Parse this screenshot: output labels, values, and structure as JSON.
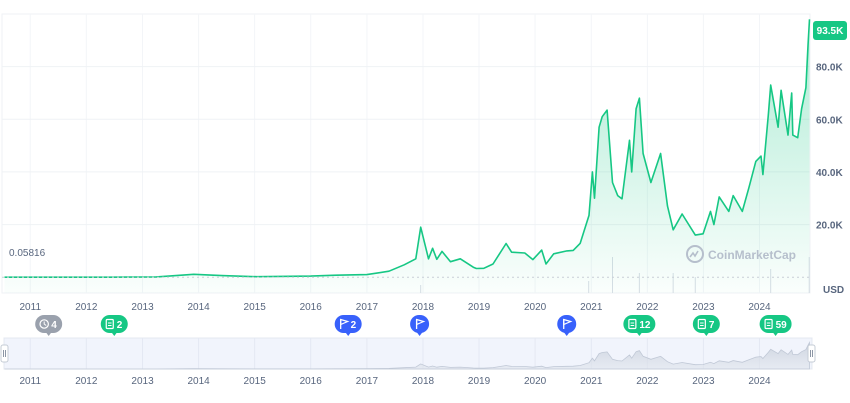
{
  "chart_data": {
    "type": "area",
    "title": "",
    "currency_label": "USD",
    "current_price_label": "93.5K",
    "start_price_label": "0.05816",
    "watermark": "CoinMarketCap",
    "x_axis": {
      "type": "date",
      "range": [
        "2010-07-01",
        "2024-11-25"
      ]
    },
    "y_axis": {
      "range": [
        -6000,
        100000
      ],
      "ticks": [
        20000,
        40000,
        60000,
        80000
      ],
      "tick_labels": [
        "20.0K",
        "40.0K",
        "60.0K",
        "80.0K"
      ]
    },
    "year_labels": [
      "2011",
      "2012",
      "2013",
      "2014",
      "2015",
      "2016",
      "2017",
      "2018",
      "2019",
      "2020",
      "2021",
      "2022",
      "2023",
      "2024"
    ],
    "series": [
      {
        "name": "",
        "color": "#16c784",
        "x": [
          "2010-07-17",
          "2011-06-01",
          "2012-06-01",
          "2013-04-01",
          "2013-11-30",
          "2014-06-01",
          "2015-01-15",
          "2016-01-01",
          "2016-06-15",
          "2017-01-01",
          "2017-05-25",
          "2017-09-01",
          "2017-11-15",
          "2017-12-17",
          "2018-02-06",
          "2018-03-05",
          "2018-04-01",
          "2018-05-05",
          "2018-06-29",
          "2018-09-01",
          "2018-11-25",
          "2018-12-15",
          "2019-02-01",
          "2019-04-02",
          "2019-06-26",
          "2019-08-01",
          "2019-10-26",
          "2019-12-18",
          "2020-02-13",
          "2020-03-12",
          "2020-05-01",
          "2020-07-26",
          "2020-09-05",
          "2020-10-21",
          "2020-12-17",
          "2021-01-08",
          "2021-01-22",
          "2021-02-21",
          "2021-03-13",
          "2021-04-14",
          "2021-05-19",
          "2021-06-22",
          "2021-07-20",
          "2021-09-07",
          "2021-09-21",
          "2021-10-20",
          "2021-11-10",
          "2021-12-04",
          "2022-01-24",
          "2022-03-28",
          "2022-05-12",
          "2022-06-18",
          "2022-08-15",
          "2022-11-09",
          "2022-12-30",
          "2023-02-16",
          "2023-03-10",
          "2023-04-14",
          "2023-06-15",
          "2023-07-14",
          "2023-09-11",
          "2023-10-24",
          "2023-12-08",
          "2024-01-11",
          "2024-01-23",
          "2024-02-28",
          "2024-03-14",
          "2024-05-01",
          "2024-05-21",
          "2024-07-05",
          "2024-07-29",
          "2024-08-05",
          "2024-09-06",
          "2024-10-01",
          "2024-10-29",
          "2024-11-12",
          "2024-11-22"
        ],
        "y": [
          0.05816,
          10,
          6,
          100,
          1100,
          600,
          200,
          430,
          750,
          1000,
          2300,
          4700,
          7000,
          19000,
          7000,
          11000,
          6800,
          9800,
          5900,
          7000,
          3800,
          3300,
          3400,
          5000,
          12800,
          9500,
          9200,
          6700,
          10300,
          5000,
          8900,
          10000,
          10200,
          12900,
          23500,
          40000,
          30000,
          57000,
          61000,
          63500,
          36000,
          31000,
          29800,
          52000,
          40000,
          64000,
          68000,
          47000,
          36000,
          47000,
          27000,
          18000,
          24000,
          16000,
          16500,
          25000,
          20000,
          30500,
          25000,
          31000,
          25000,
          34000,
          44000,
          46000,
          39000,
          62000,
          73000,
          57000,
          71000,
          54000,
          70000,
          54000,
          53000,
          64000,
          72000,
          88000,
          98000
        ]
      }
    ],
    "volume": {
      "x": [
        "2017-12-17",
        "2020-12-15",
        "2021-05-19",
        "2021-11-10",
        "2022-06-18",
        "2022-11-09",
        "2024-03-14",
        "2024-11-20"
      ],
      "relative": [
        0.2,
        0.3,
        0.9,
        0.5,
        0.5,
        0.4,
        0.6,
        0.9
      ]
    },
    "event_markers": [
      {
        "type": "history",
        "label": "4",
        "date": "2011-05-01",
        "color": "#9aa1ad"
      },
      {
        "type": "doc",
        "label": "2",
        "date": "2012-07-01",
        "color": "#16c784"
      },
      {
        "type": "flag",
        "label": "2",
        "date": "2016-09-01",
        "color": "#3861fb"
      },
      {
        "type": "flag",
        "label": "",
        "date": "2017-12-10",
        "color": "#3861fb"
      },
      {
        "type": "flag",
        "label": "",
        "date": "2020-07-25",
        "color": "#3861fb"
      },
      {
        "type": "doc",
        "label": "12",
        "date": "2021-11-10",
        "color": "#16c784"
      },
      {
        "type": "doc",
        "label": "7",
        "date": "2023-01-20",
        "color": "#16c784"
      },
      {
        "type": "doc",
        "label": "59",
        "date": "2024-04-15",
        "color": "#16c784"
      }
    ],
    "grid": true
  }
}
